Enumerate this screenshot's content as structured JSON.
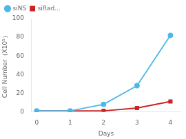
{
  "chart_data": {
    "type": "line",
    "x": [
      0,
      1,
      2,
      3,
      4
    ],
    "series": [
      {
        "name": "siNS",
        "color": "#4db8e8",
        "marker": "circle",
        "values": [
          1,
          1,
          8,
          28,
          82
        ]
      },
      {
        "name": "siRad...",
        "color": "#cc2222",
        "marker": "square",
        "values": [
          1,
          1,
          1,
          4,
          11
        ]
      }
    ],
    "xlabel": "Days",
    "ylabel": "Cell Number（X10⁵）",
    "xlim": [
      -0.15,
      4.3
    ],
    "xticks": [
      0,
      1,
      2,
      3,
      4
    ],
    "ylim": [
      0,
      100
    ],
    "yticks": [
      0,
      20,
      40,
      60,
      80,
      100
    ],
    "grid": false,
    "legend": "upper left"
  }
}
